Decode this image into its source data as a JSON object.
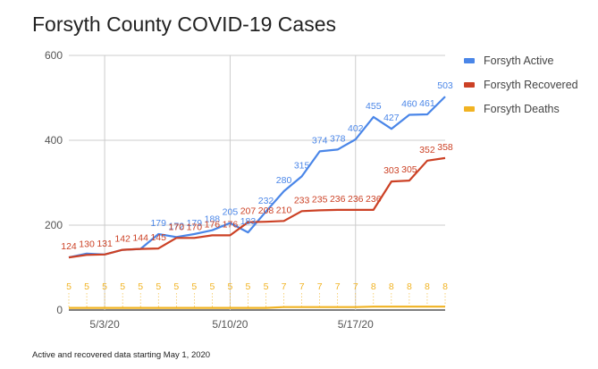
{
  "chart_data": {
    "type": "line",
    "title": "Forsyth County COVID-19 Cases",
    "xlabel": "",
    "ylabel": "",
    "ylim": [
      0,
      600
    ],
    "yticks": [
      0,
      200,
      400,
      600
    ],
    "x": [
      "5/1/20",
      "5/2/20",
      "5/3/20",
      "5/4/20",
      "5/5/20",
      "5/6/20",
      "5/7/20",
      "5/8/20",
      "5/9/20",
      "5/10/20",
      "5/11/20",
      "5/12/20",
      "5/13/20",
      "5/14/20",
      "5/15/20",
      "5/16/20",
      "5/17/20",
      "5/18/20",
      "5/19/20",
      "5/20/20",
      "5/21/20",
      "5/22/20"
    ],
    "xtick_labels": [
      {
        "index": 2,
        "label": "5/3/20"
      },
      {
        "index": 9,
        "label": "5/10/20"
      },
      {
        "index": 16,
        "label": "5/17/20"
      }
    ],
    "grid": true,
    "legend_position": "right",
    "series": [
      {
        "name": "Forsyth Active",
        "color": "#4a86e8",
        "values": [
          124,
          133,
          131,
          142,
          144,
          179,
          172,
          179,
          188,
          205,
          183,
          232,
          280,
          315,
          374,
          378,
          402,
          455,
          427,
          460,
          461,
          503
        ],
        "labeled": [
          false,
          false,
          false,
          false,
          false,
          true,
          true,
          true,
          true,
          true,
          true,
          true,
          true,
          true,
          true,
          true,
          true,
          true,
          true,
          true,
          true,
          true
        ]
      },
      {
        "name": "Forsyth Recovered",
        "color": "#cc4125",
        "values": [
          124,
          130,
          131,
          142,
          144,
          145,
          170,
          170,
          176,
          176,
          207,
          208,
          210,
          233,
          235,
          236,
          236,
          236,
          303,
          305,
          352,
          358
        ],
        "labeled": [
          true,
          true,
          true,
          true,
          true,
          true,
          true,
          true,
          true,
          true,
          true,
          true,
          true,
          true,
          true,
          true,
          true,
          true,
          true,
          true,
          true,
          true
        ]
      },
      {
        "name": "Forsyth Deaths",
        "color": "#f1b322",
        "values": [
          5,
          5,
          5,
          5,
          5,
          5,
          5,
          5,
          5,
          5,
          5,
          5,
          7,
          7,
          7,
          7,
          7,
          8,
          8,
          8,
          8,
          8
        ],
        "labeled": [
          true,
          true,
          true,
          true,
          true,
          true,
          true,
          true,
          true,
          true,
          true,
          true,
          true,
          true,
          true,
          true,
          true,
          true,
          true,
          true,
          true,
          true
        ]
      }
    ]
  },
  "footnote": "Active and recovered data starting May 1, 2020"
}
